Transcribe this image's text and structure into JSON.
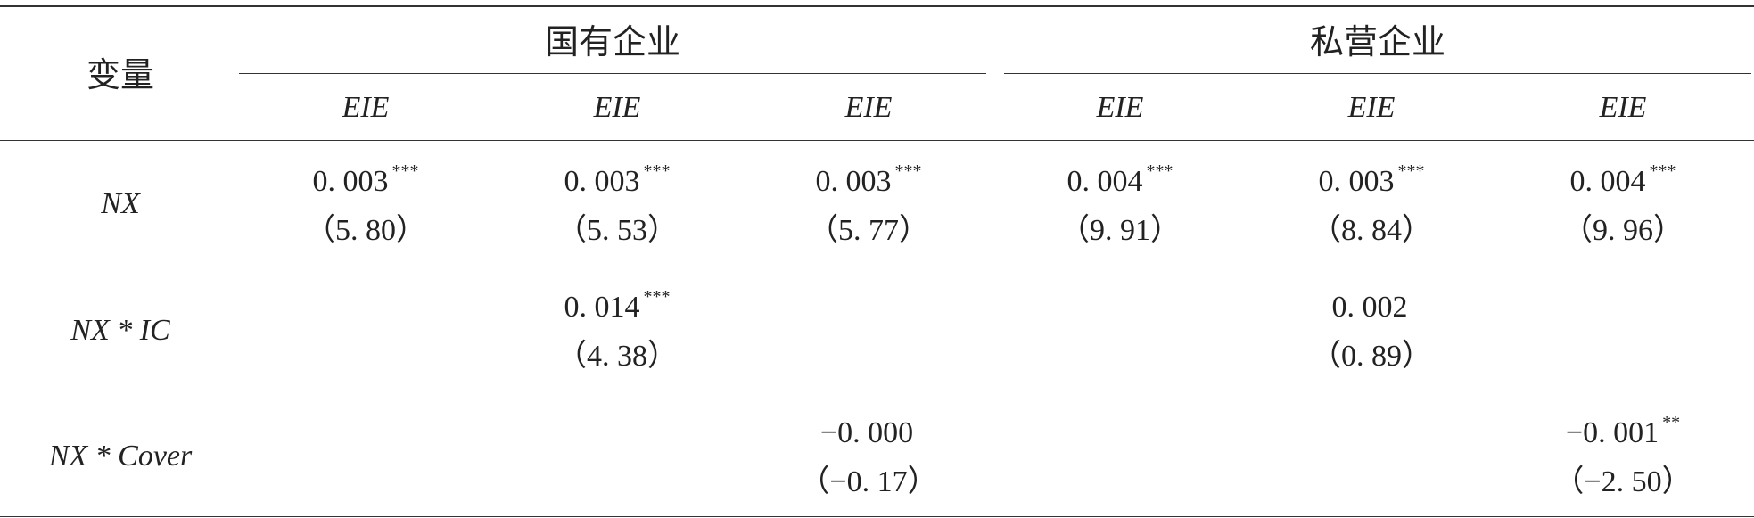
{
  "header": {
    "var_label": "变量",
    "group_soe": "国有企业",
    "group_private": "私营企业",
    "cols": [
      "EIE",
      "EIE",
      "EIE",
      "EIE",
      "EIE",
      "EIE"
    ]
  },
  "rows": [
    {
      "label": "NX",
      "cells": [
        {
          "coef": "0. 003",
          "sig": "***",
          "t": "（5. 80）"
        },
        {
          "coef": "0. 003",
          "sig": "***",
          "t": "（5. 53）"
        },
        {
          "coef": "0. 003",
          "sig": "***",
          "t": "（5. 77）"
        },
        {
          "coef": "0. 004",
          "sig": "***",
          "t": "（9. 91）"
        },
        {
          "coef": "0. 003",
          "sig": "***",
          "t": "（8. 84）"
        },
        {
          "coef": "0. 004",
          "sig": "***",
          "t": "（9. 96）"
        }
      ]
    },
    {
      "label": "NX * IC",
      "cells": [
        {
          "coef": "",
          "sig": "",
          "t": ""
        },
        {
          "coef": "0. 014",
          "sig": "***",
          "t": "（4. 38）"
        },
        {
          "coef": "",
          "sig": "",
          "t": ""
        },
        {
          "coef": "",
          "sig": "",
          "t": ""
        },
        {
          "coef": "0. 002",
          "sig": "",
          "t": "（0. 89）"
        },
        {
          "coef": "",
          "sig": "",
          "t": ""
        }
      ]
    },
    {
      "label": "NX * Cover",
      "cells": [
        {
          "coef": "",
          "sig": "",
          "t": ""
        },
        {
          "coef": "",
          "sig": "",
          "t": ""
        },
        {
          "coef": "−0. 000",
          "sig": "",
          "t": "（−0. 17）"
        },
        {
          "coef": "",
          "sig": "",
          "t": ""
        },
        {
          "coef": "",
          "sig": "",
          "t": ""
        },
        {
          "coef": "−0. 001",
          "sig": "**",
          "t": "（−2. 50）"
        }
      ]
    }
  ]
}
